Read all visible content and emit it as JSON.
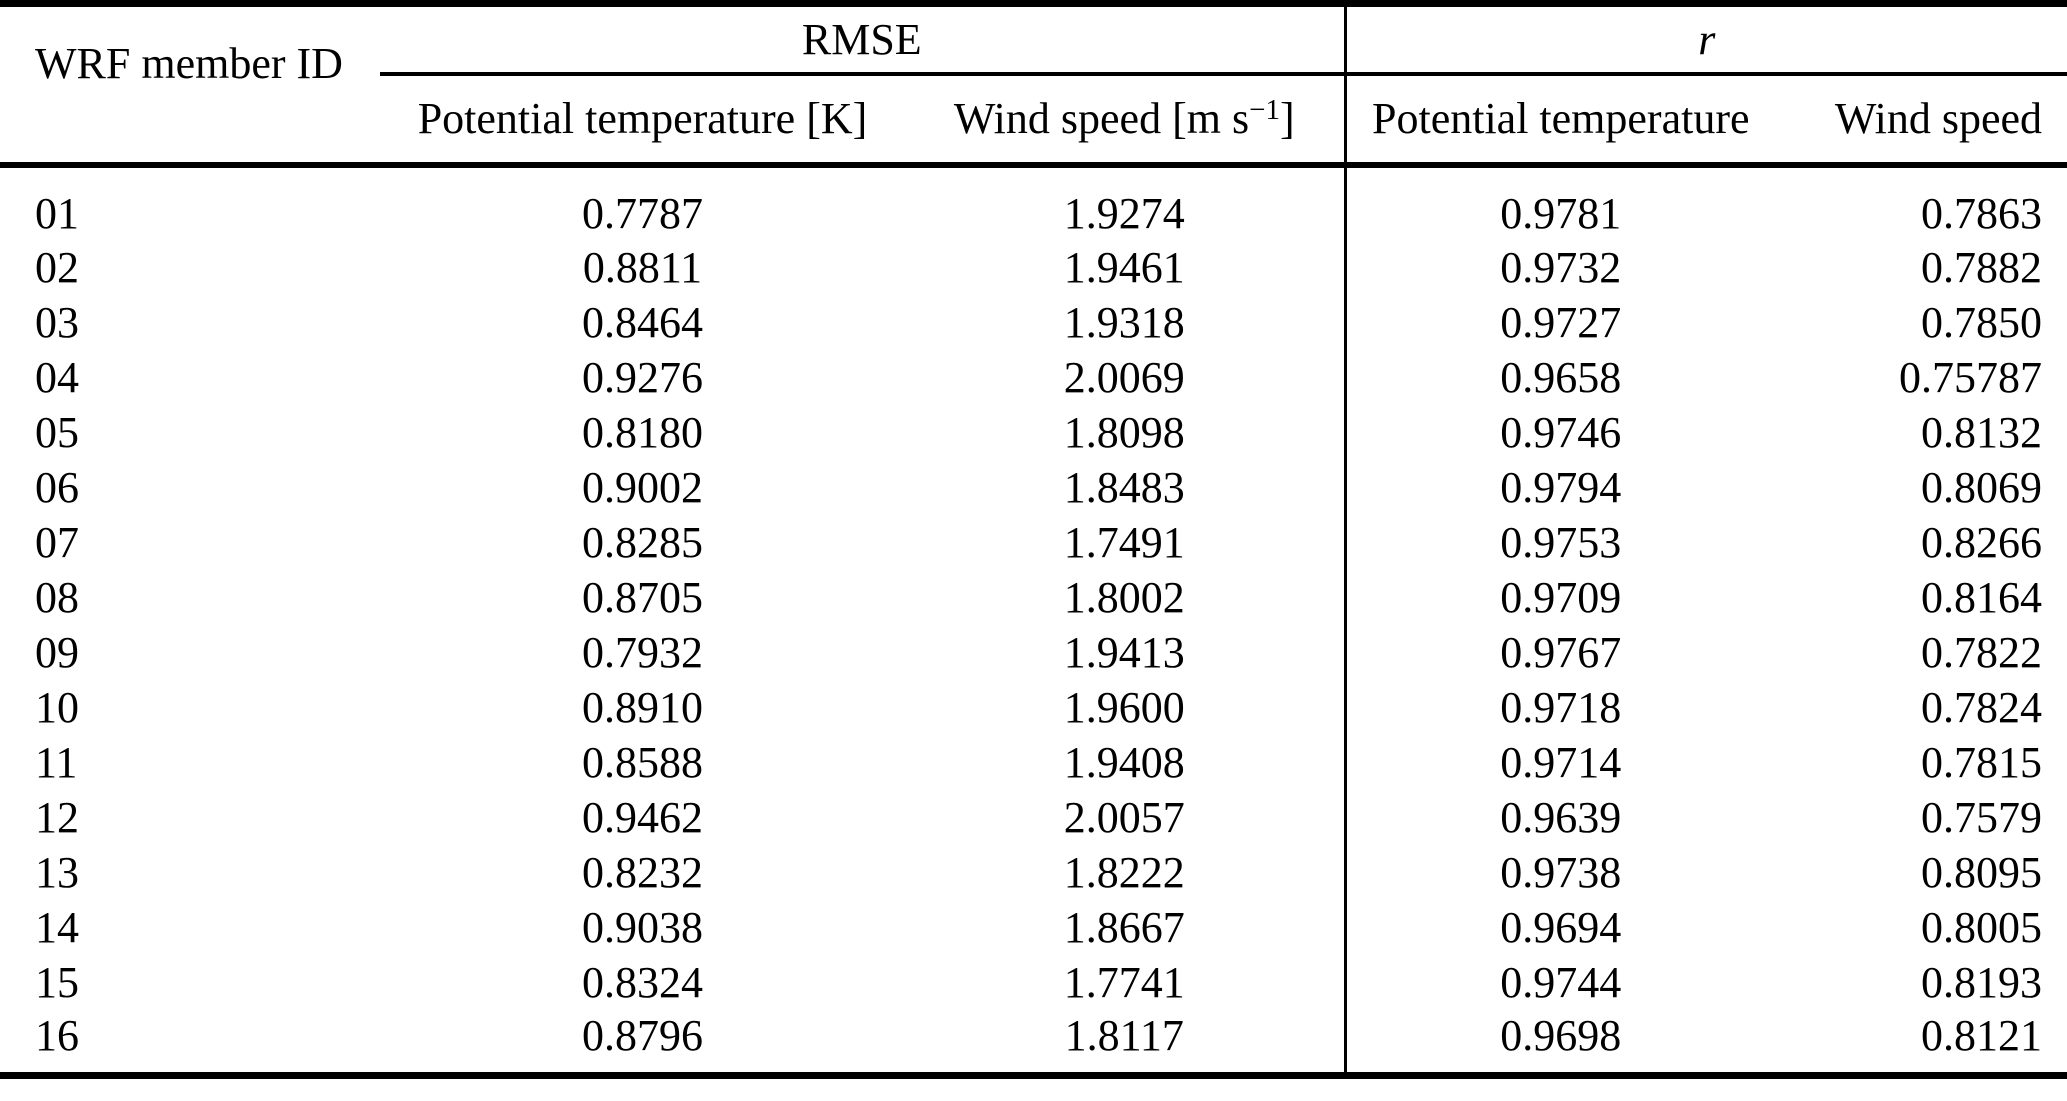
{
  "table": {
    "headers": {
      "member_id": "WRF member ID",
      "rmse_group": "RMSE",
      "r_group": "r",
      "rmse_potential_temperature": "Potential temperature [K]",
      "rmse_wind_speed_pre": "Wind speed [m s",
      "rmse_wind_speed_sup": "−1",
      "rmse_wind_speed_post": "]",
      "r_potential_temperature": "Potential temperature",
      "r_wind_speed": "Wind speed"
    },
    "rows": [
      {
        "member_id": "01",
        "rmse_potential_temperature": "0.7787",
        "rmse_wind_speed": "1.9274",
        "r_potential_temperature": "0.9781",
        "r_wind_speed": "0.7863"
      },
      {
        "member_id": "02",
        "rmse_potential_temperature": "0.8811",
        "rmse_wind_speed": "1.9461",
        "r_potential_temperature": "0.9732",
        "r_wind_speed": "0.7882"
      },
      {
        "member_id": "03",
        "rmse_potential_temperature": "0.8464",
        "rmse_wind_speed": "1.9318",
        "r_potential_temperature": "0.9727",
        "r_wind_speed": "0.7850"
      },
      {
        "member_id": "04",
        "rmse_potential_temperature": "0.9276",
        "rmse_wind_speed": "2.0069",
        "r_potential_temperature": "0.9658",
        "r_wind_speed": "0.75787"
      },
      {
        "member_id": "05",
        "rmse_potential_temperature": "0.8180",
        "rmse_wind_speed": "1.8098",
        "r_potential_temperature": "0.9746",
        "r_wind_speed": "0.8132"
      },
      {
        "member_id": "06",
        "rmse_potential_temperature": "0.9002",
        "rmse_wind_speed": "1.8483",
        "r_potential_temperature": "0.9794",
        "r_wind_speed": "0.8069"
      },
      {
        "member_id": "07",
        "rmse_potential_temperature": "0.8285",
        "rmse_wind_speed": "1.7491",
        "r_potential_temperature": "0.9753",
        "r_wind_speed": "0.8266"
      },
      {
        "member_id": "08",
        "rmse_potential_temperature": "0.8705",
        "rmse_wind_speed": "1.8002",
        "r_potential_temperature": "0.9709",
        "r_wind_speed": "0.8164"
      },
      {
        "member_id": "09",
        "rmse_potential_temperature": "0.7932",
        "rmse_wind_speed": "1.9413",
        "r_potential_temperature": "0.9767",
        "r_wind_speed": "0.7822"
      },
      {
        "member_id": "10",
        "rmse_potential_temperature": "0.8910",
        "rmse_wind_speed": "1.9600",
        "r_potential_temperature": "0.9718",
        "r_wind_speed": "0.7824"
      },
      {
        "member_id": "11",
        "rmse_potential_temperature": "0.8588",
        "rmse_wind_speed": "1.9408",
        "r_potential_temperature": "0.9714",
        "r_wind_speed": "0.7815"
      },
      {
        "member_id": "12",
        "rmse_potential_temperature": "0.9462",
        "rmse_wind_speed": "2.0057",
        "r_potential_temperature": "0.9639",
        "r_wind_speed": "0.7579"
      },
      {
        "member_id": "13",
        "rmse_potential_temperature": "0.8232",
        "rmse_wind_speed": "1.8222",
        "r_potential_temperature": "0.9738",
        "r_wind_speed": "0.8095"
      },
      {
        "member_id": "14",
        "rmse_potential_temperature": "0.9038",
        "rmse_wind_speed": "1.8667",
        "r_potential_temperature": "0.9694",
        "r_wind_speed": "0.8005"
      },
      {
        "member_id": "15",
        "rmse_potential_temperature": "0.8324",
        "rmse_wind_speed": "1.7741",
        "r_potential_temperature": "0.9744",
        "r_wind_speed": "0.8193"
      },
      {
        "member_id": "16",
        "rmse_potential_temperature": "0.8796",
        "rmse_wind_speed": "1.8117",
        "r_potential_temperature": "0.9698",
        "r_wind_speed": "0.8121"
      }
    ]
  }
}
